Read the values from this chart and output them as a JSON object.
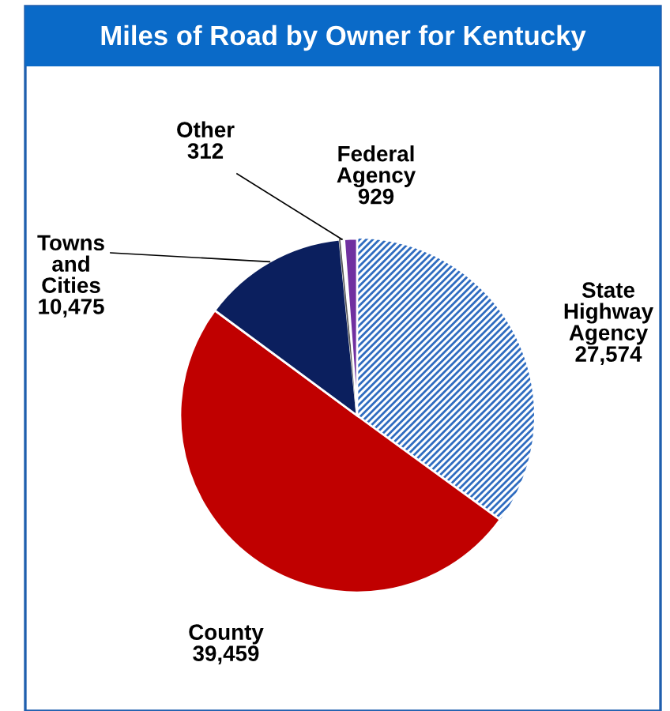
{
  "chart_data": {
    "type": "pie",
    "title": "Miles of Road by Owner for Kentucky",
    "categories": [
      "State\nHighway\nAgency",
      "County",
      "Towns\nand\nCities",
      "Other",
      "Federal\nAgency"
    ],
    "values": [
      27574,
      39459,
      10475,
      312,
      929
    ],
    "colors": [
      "#2f6cc0",
      "#c00000",
      "#0b1f5e",
      "#ffffff",
      "#7030a0"
    ],
    "value_labels": [
      "27,574",
      "39,459",
      "10,475",
      "312",
      "929"
    ],
    "legend": false
  }
}
